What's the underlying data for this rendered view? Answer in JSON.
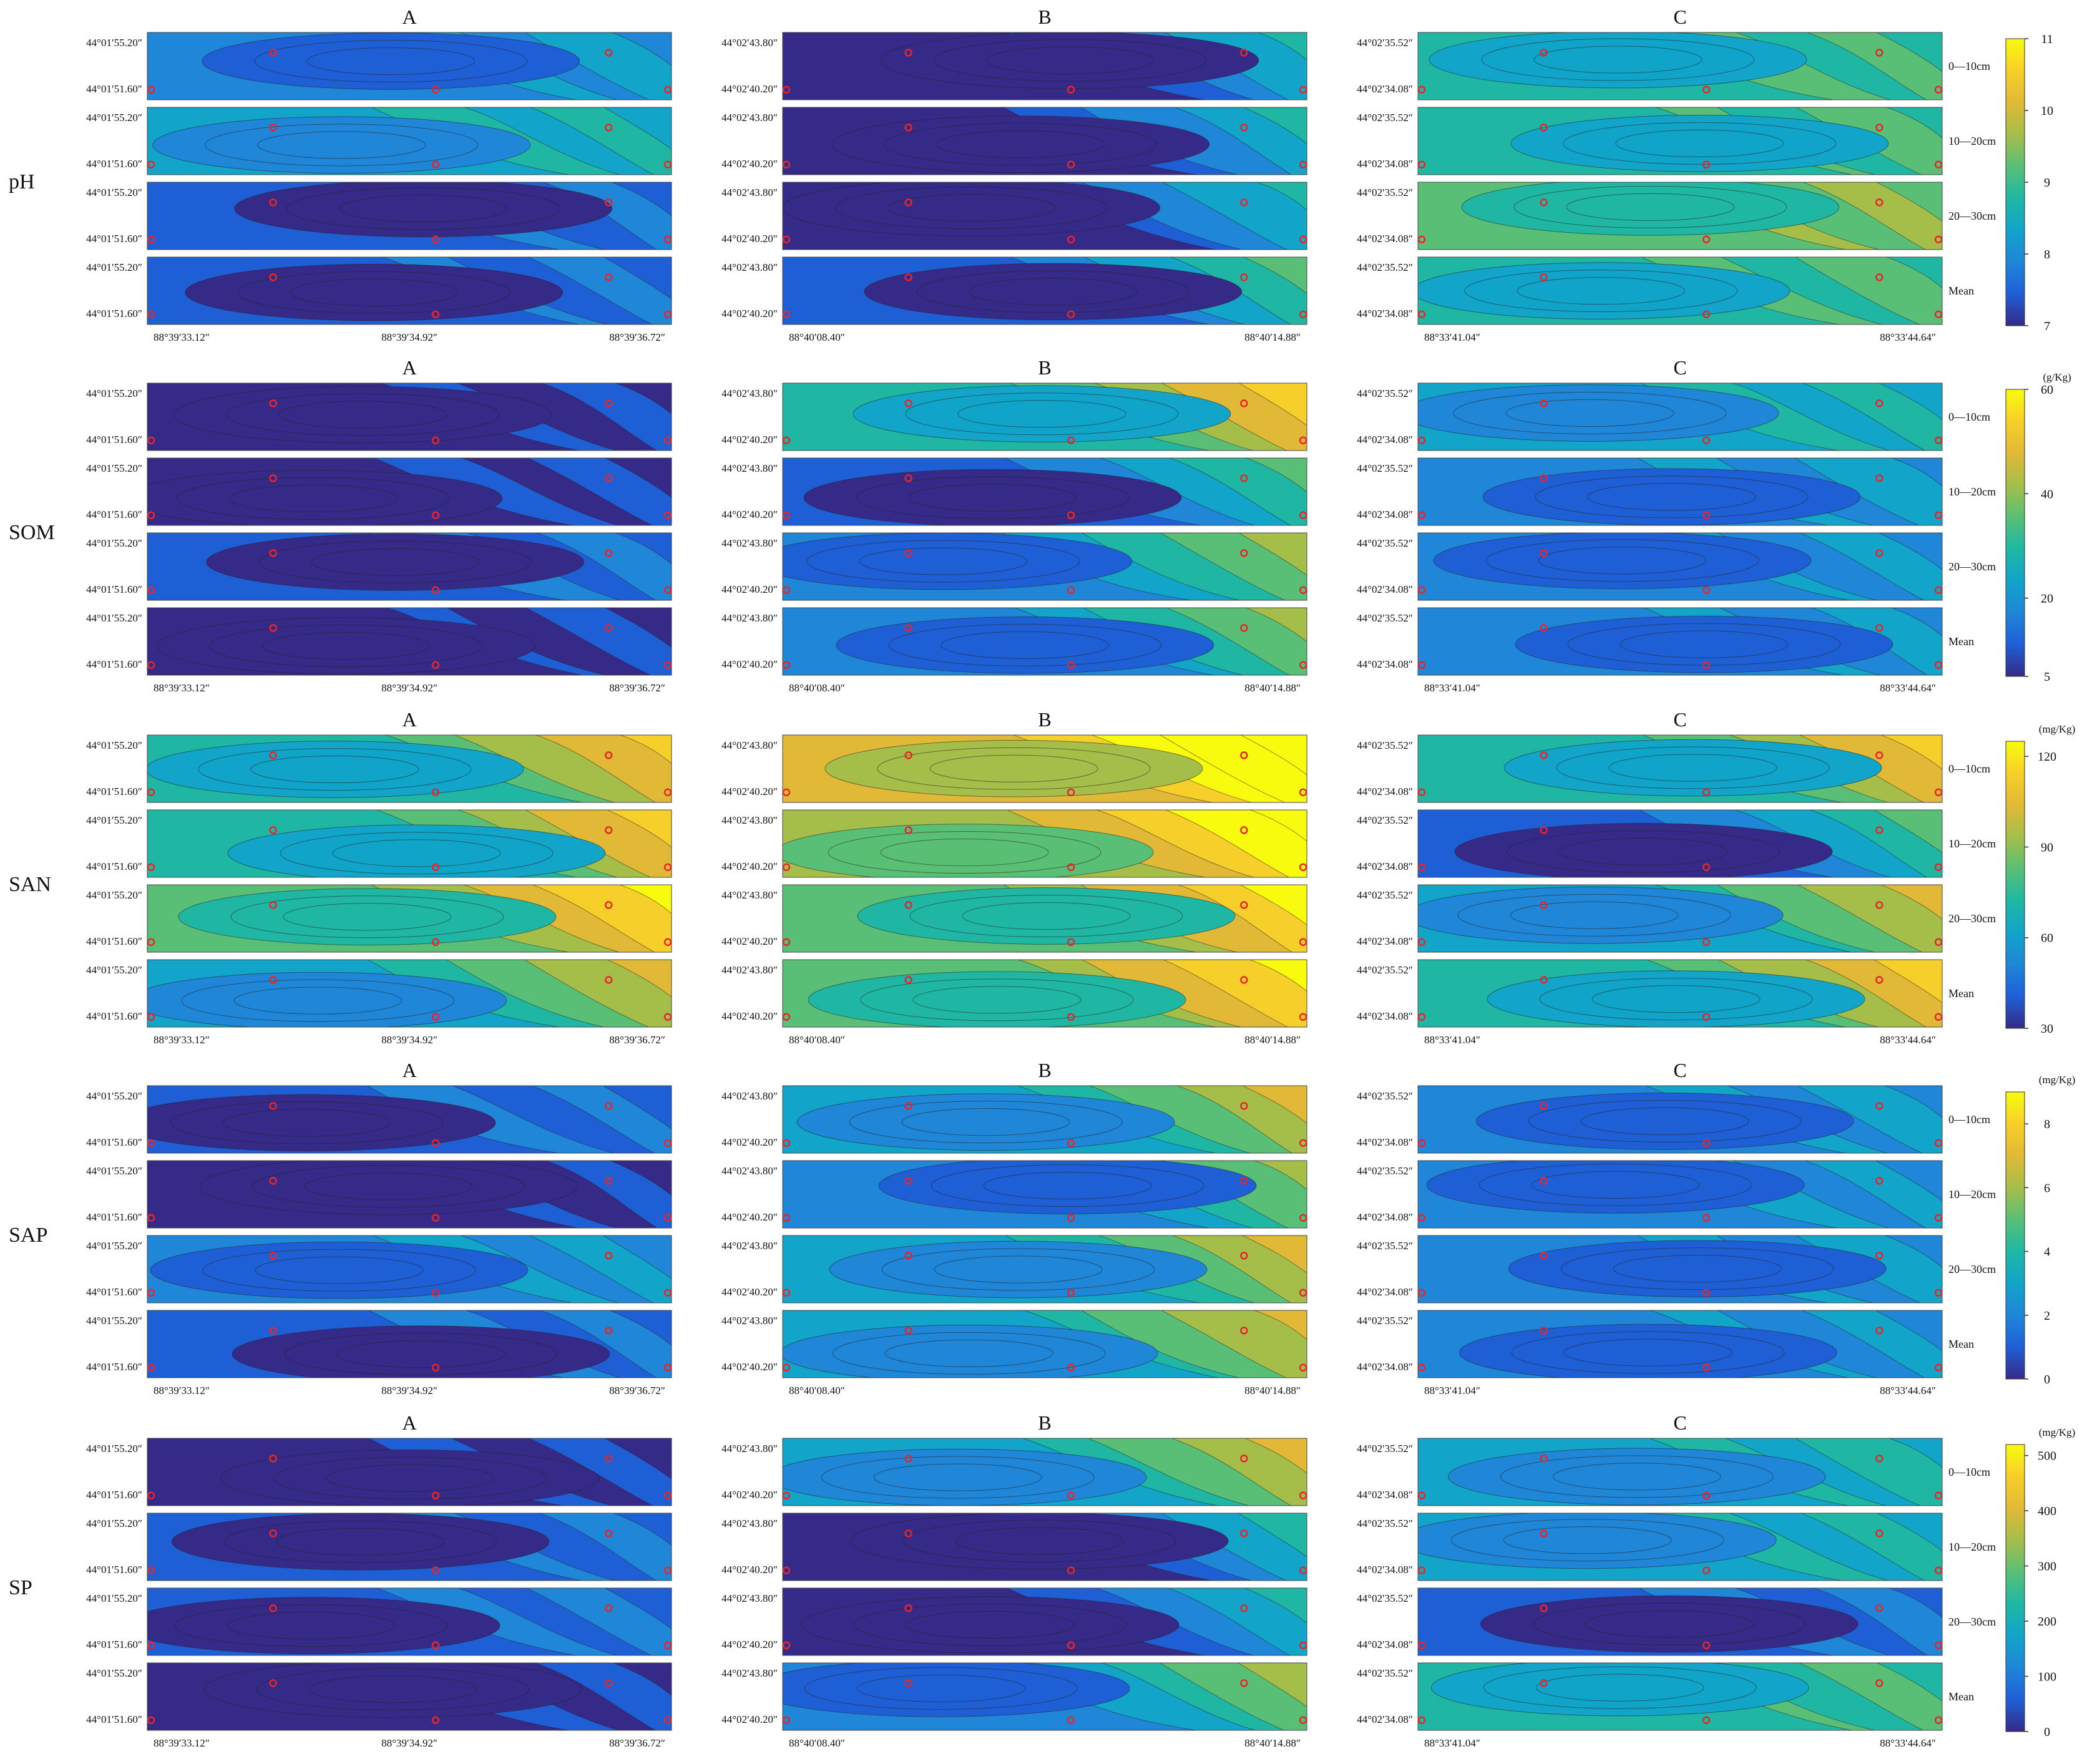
{
  "figure": {
    "columns": [
      "A",
      "B",
      "C"
    ],
    "depths": [
      "0—10cm",
      "10—20cm",
      "20—30cm",
      "Mean"
    ]
  },
  "axes": {
    "A": {
      "lat": [
        "44°01′55.20″",
        "44°01′51.60″"
      ],
      "lon": [
        "88°39′33.12″",
        "88°39′34.92″",
        "88°39′36.72″"
      ]
    },
    "B": {
      "lat": [
        "44°02′43.80″",
        "44°02′40.20″"
      ],
      "lon": [
        "88°40′08.40″",
        "88°40′14.88″"
      ]
    },
    "C": {
      "lat": [
        "44°02′35.52″",
        "44°02′34.08″"
      ],
      "lon": [
        "88°33′41.04″",
        "88°33′44.64″"
      ]
    }
  },
  "chart_data": [
    {
      "type": "heatmap",
      "variable": "pH",
      "unit": "",
      "colorbar_ticks": [
        "11",
        "10",
        "9",
        "8",
        "7"
      ],
      "crange": [
        7,
        11
      ]
    },
    {
      "type": "heatmap",
      "variable": "SOM",
      "unit": "(g/Kg)",
      "colorbar_ticks": [
        "60",
        "40",
        "20",
        "5"
      ],
      "crange": [
        5,
        60
      ]
    },
    {
      "type": "heatmap",
      "variable": "SAN",
      "unit": "(mg/Kg)",
      "colorbar_ticks": [
        "120",
        "90",
        "60",
        "30"
      ],
      "crange": [
        30,
        125
      ]
    },
    {
      "type": "heatmap",
      "variable": "SAP",
      "unit": "(mg/Kg)",
      "colorbar_ticks": [
        "8",
        "6",
        "4",
        "2",
        "0"
      ],
      "crange": [
        0,
        9
      ]
    },
    {
      "type": "heatmap",
      "variable": "SP",
      "unit": "(mg/Kg)",
      "colorbar_ticks": [
        "500",
        "400",
        "300",
        "200",
        "100",
        "0"
      ],
      "crange": [
        0,
        520
      ]
    }
  ],
  "colors": {
    "c0": "#352a87",
    "c1": "#1f5fd6",
    "c2": "#1f86d8",
    "c3": "#12a4c9",
    "c4": "#1fb7a4",
    "c5": "#59bf76",
    "c6": "#a5be4a",
    "c7": "#e1b936",
    "c8": "#f7cf2a",
    "c9": "#f9fb0e",
    "marker": "#e8262a"
  }
}
